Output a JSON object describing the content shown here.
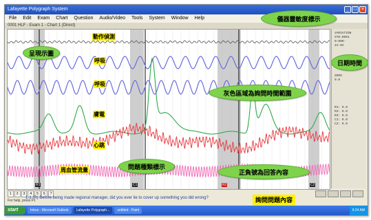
{
  "window": {
    "title": "Lafayette Polygraph System",
    "subtitle": "0001 HLF - Exam 1 - Chart 1 (Direct)",
    "question_text": "1-1 (R) Before being made regional manager, did you ever lie to cover up something you did wrong?"
  },
  "menu": [
    "File",
    "Edit",
    "Exam",
    "Chart",
    "Question",
    "Audio/Video",
    "Tools",
    "System",
    "Window",
    "Help"
  ],
  "status_cells": [
    "1",
    "2",
    "3",
    "4",
    "5",
    "6",
    "7"
  ],
  "status_left": "For help, press F1",
  "tracks": {
    "motion": "動作偵測",
    "breath1": "呼吸",
    "breath2": "呼吸",
    "gsr": "膚電",
    "cardio": "心跳",
    "vasomotor": "周血管流量"
  },
  "callouts": {
    "chart_canvas": "呈現示圖",
    "sensitivity": "儀器靈敏度標示",
    "datetime": "日期時間",
    "gray_zone": "灰色區域為詢問時間範圍",
    "question_marker": "問題種類標示",
    "answer_sign": "正負號為回答內容",
    "question_content": "詢問問題內容"
  },
  "markers": [
    "R1",
    "C1",
    "R2",
    "C2"
  ],
  "right_panel": {
    "lines": [
      "VARIATION",
      "STD:0001",
      "0:000-",
      "4V-8V",
      "OFF:3/16",
      "09:24:16",
      "",
      "ZERO",
      "0.0",
      "",
      "R1: 0.0",
      "R2: 0.0",
      "R3: 0.0",
      "C1: 0.0",
      "C2: 0.0"
    ]
  },
  "taskbar": {
    "start": "start",
    "items": [
      "Inbox - Microsoft Outlook",
      "Lafayette Polygraph...",
      "untitled - Paint"
    ],
    "tray": "9:24 AM"
  },
  "colors": {
    "breath": "#6a6adf",
    "gsr": "#2fa84a",
    "cardio": "#e8333a",
    "vasomotor": "#f06ab4",
    "highlight": "#fff200",
    "bubble": "#7ed34b"
  }
}
